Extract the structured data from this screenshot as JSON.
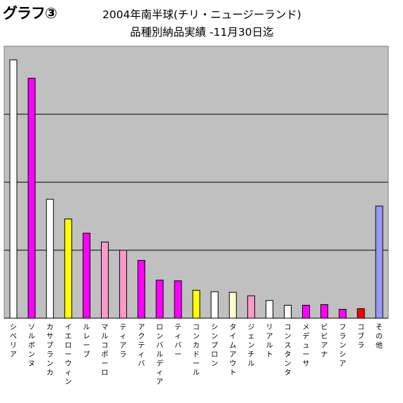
{
  "header": {
    "graph_label": "グラフ③",
    "title_line1": "2004年南半球(チリ・ニュージーランド)",
    "title_line2": "品種別納品実績 -11月30日迄"
  },
  "colors": {
    "plot_background": "#c0c0c0",
    "gridline": "#000000",
    "white": "#ffffff",
    "magenta": "#ff00ff",
    "yellow": "#ffff00",
    "pink": "#ff99cc",
    "light_yellow": "#ffffcc",
    "red": "#ff0000",
    "periwinkle": "#9999ff"
  },
  "chart_data": {
    "type": "bar",
    "title": "2004年南半球(チリ・ニュージーランド) 品種別納品実績 -11月30日迄",
    "xlabel": "",
    "ylabel": "",
    "ylim": [
      0,
      4
    ],
    "grid": true,
    "legend": "none",
    "categories": [
      "シベリア",
      "ソルボンヌ",
      "カサブランカ",
      "イエローウィン",
      "ルレーブ",
      "マルコポーロ",
      "ティアラ",
      "アクティバ",
      "ロンバルディア",
      "ティバー",
      "コンカドール",
      "シンプロン",
      "タイムアウト",
      "ジェンチル",
      "リアルト",
      "コンスタンタ",
      "メデューサ",
      "ビビアナ",
      "フランシア",
      "コブラ",
      "その他"
    ],
    "values": [
      3.8,
      3.53,
      1.75,
      1.46,
      1.25,
      1.12,
      1.0,
      0.85,
      0.56,
      0.55,
      0.41,
      0.39,
      0.38,
      0.33,
      0.26,
      0.19,
      0.19,
      0.2,
      0.13,
      0.14,
      1.65
    ],
    "bar_colors": [
      "#ffffff",
      "#ff00ff",
      "#ffffff",
      "#ffff00",
      "#ff00ff",
      "#ff99cc",
      "#ff99cc",
      "#ff00ff",
      "#ff00ff",
      "#ff00ff",
      "#ffff00",
      "#ffffff",
      "#ffffcc",
      "#ff99cc",
      "#ffffff",
      "#ffffff",
      "#ff00ff",
      "#ff00ff",
      "#ff00ff",
      "#ff0000",
      "#9999ff"
    ]
  }
}
